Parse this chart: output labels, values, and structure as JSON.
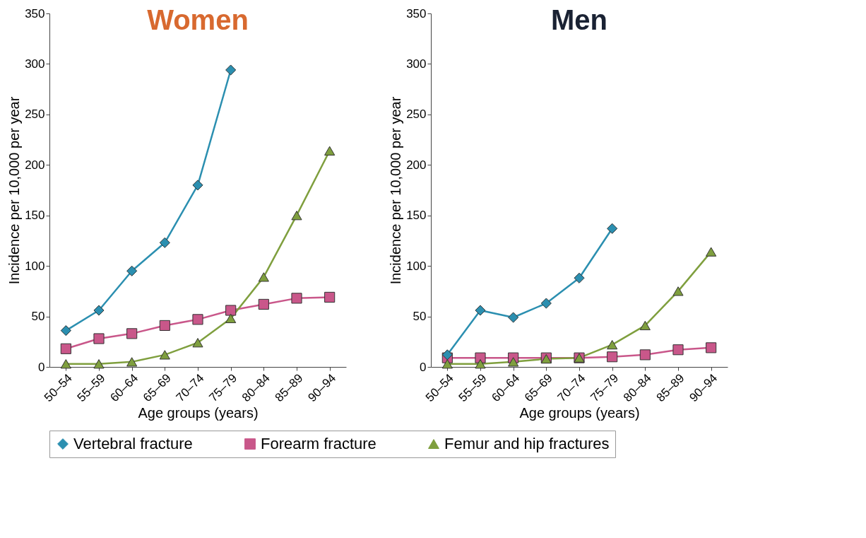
{
  "chart_data": [
    {
      "type": "line",
      "title": "Women",
      "xlabel": "Age groups (years)",
      "ylabel": "Incidence per 10,000 per year",
      "categories": [
        "50–54",
        "55–59",
        "60–64",
        "65–69",
        "70–74",
        "75–79",
        "80–84",
        "85–89",
        "90–94"
      ],
      "ylim": [
        0,
        350
      ],
      "yticks": [
        0,
        50,
        100,
        150,
        200,
        250,
        300,
        350
      ],
      "legend": "bottom",
      "series": [
        {
          "name": "Vertebral fracture",
          "color": "#2b8fb0",
          "marker": "diamond",
          "values": [
            36,
            56,
            95,
            123,
            180,
            294,
            null,
            null,
            null
          ]
        },
        {
          "name": "Forearm fracture",
          "color": "#c9578a",
          "marker": "square",
          "values": [
            18,
            28,
            33,
            41,
            47,
            56,
            62,
            68,
            69
          ]
        },
        {
          "name": "Femur and hip fractures",
          "color": "#7f9f3e",
          "marker": "triangle",
          "values": [
            3,
            3,
            5,
            12,
            24,
            48,
            89,
            150,
            214
          ]
        }
      ]
    },
    {
      "type": "line",
      "title": "Men",
      "xlabel": "Age groups (years)",
      "ylabel": "Incidence per 10,000 per year",
      "categories": [
        "50–54",
        "55–59",
        "60–64",
        "65–69",
        "70–74",
        "75–79",
        "80–84",
        "85–89",
        "90–94"
      ],
      "ylim": [
        0,
        350
      ],
      "yticks": [
        0,
        50,
        100,
        150,
        200,
        250,
        300,
        350
      ],
      "legend": "bottom",
      "series": [
        {
          "name": "Vertebral fracture",
          "color": "#2b8fb0",
          "marker": "diamond",
          "values": [
            12,
            56,
            49,
            63,
            88,
            137,
            null,
            null,
            null
          ]
        },
        {
          "name": "Forearm fracture",
          "color": "#c9578a",
          "marker": "square",
          "values": [
            9,
            9,
            9,
            9,
            9,
            10,
            12,
            17,
            19
          ]
        },
        {
          "name": "Femur and hip fractures",
          "color": "#7f9f3e",
          "marker": "triangle",
          "values": [
            3,
            3,
            5,
            8,
            9,
            22,
            41,
            75,
            114
          ]
        }
      ]
    }
  ]
}
